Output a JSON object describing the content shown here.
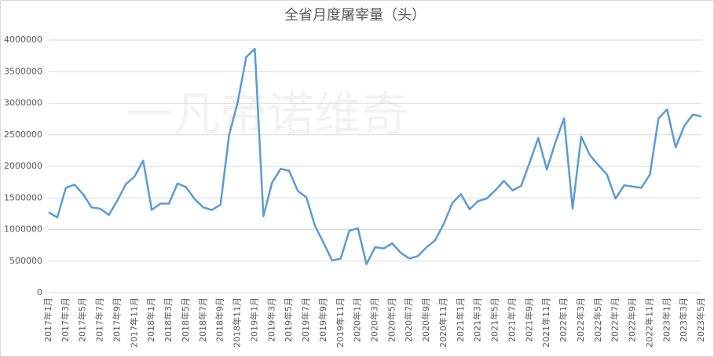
{
  "chart_data": {
    "type": "line",
    "title": "全省月度屠宰量（头）",
    "watermark": "一凡帝诺维奇",
    "categories": [
      "2017年1月",
      null,
      "2017年3月",
      null,
      "2017年5月",
      null,
      "2017年7月",
      null,
      "2017年9月",
      null,
      "2017年11月",
      null,
      "2018年1月",
      null,
      "2018年3月",
      null,
      "2018年5月",
      null,
      "2018年7月",
      null,
      "2018年9月",
      null,
      "2018年11月",
      null,
      "2019年1月",
      null,
      "2019年3月",
      null,
      "2019年5月",
      null,
      "2019年7月",
      null,
      "2019年9月",
      null,
      "2019年11月",
      null,
      "2020年1月",
      null,
      "2020年3月",
      null,
      "2020年5月",
      null,
      "2020年7月",
      null,
      "2020年9月",
      null,
      "2020年11月",
      null,
      "2021年1月",
      null,
      "2021年3月",
      null,
      "2021年5月",
      null,
      "2021年7月",
      null,
      "2021年9月",
      null,
      "2021年11月",
      null,
      "2022年1月",
      null,
      "2022年3月",
      null,
      "2022年5月",
      null,
      "2022年7月",
      null,
      "2022年9月",
      null,
      "2022年11月",
      null,
      "2023年1月",
      null,
      "2023年3月",
      null,
      "2023年5月"
    ],
    "series": [
      {
        "color": "#5b9bd5",
        "values": [
          1270000,
          1190000,
          1660000,
          1710000,
          1560000,
          1350000,
          1330000,
          1230000,
          1460000,
          1720000,
          1840000,
          2090000,
          1310000,
          1410000,
          1410000,
          1730000,
          1670000,
          1480000,
          1350000,
          1310000,
          1390000,
          2490000,
          3010000,
          3730000,
          3860000,
          1210000,
          1740000,
          1960000,
          1930000,
          1610000,
          1510000,
          1060000,
          790000,
          510000,
          540000,
          980000,
          1020000,
          450000,
          720000,
          700000,
          780000,
          630000,
          540000,
          580000,
          720000,
          830000,
          1090000,
          1420000,
          1560000,
          1320000,
          1450000,
          1490000,
          1620000,
          1770000,
          1620000,
          1690000,
          2060000,
          2450000,
          1950000,
          2380000,
          2760000,
          1330000,
          2470000,
          2180000,
          2020000,
          1870000,
          1490000,
          1700000,
          1680000,
          1660000,
          1870000,
          2760000,
          2900000,
          2300000,
          2640000,
          2820000,
          2790000
        ]
      }
    ],
    "ylim": [
      0,
      4000000
    ],
    "yticks": [
      0,
      500000,
      1000000,
      1500000,
      2000000,
      2500000,
      3000000,
      3500000,
      4000000
    ],
    "grid": true
  }
}
